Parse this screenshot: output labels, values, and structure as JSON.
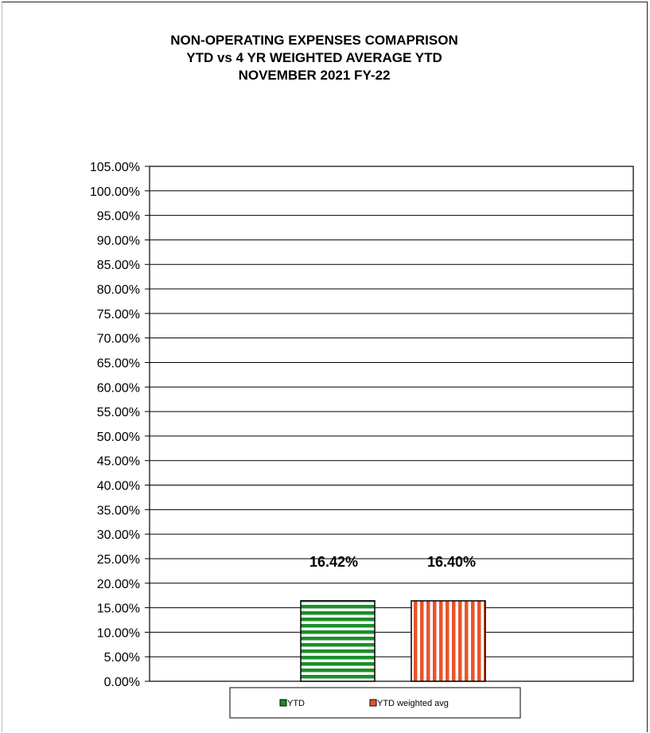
{
  "chart_data": {
    "type": "bar",
    "title": [
      "NON-OPERATING EXPENSES COMAPRISON",
      "YTD vs 4 YR WEIGHTED AVERAGE YTD",
      "NOVEMBER 2021  FY-22"
    ],
    "xlabel": "",
    "ylabel": "",
    "ylim": [
      0,
      105
    ],
    "ytick_step": 5,
    "y_tick_format": "percent_2dp",
    "grid": true,
    "legend_position": "bottom",
    "series": [
      {
        "name": "YTD",
        "values": [
          16.42
        ],
        "data_label": "16.42%",
        "color": "#1a8f2a",
        "pattern": "horizontal-stripes"
      },
      {
        "name": "YTD weighted avg",
        "values": [
          16.4
        ],
        "data_label": "16.40%",
        "color": "#e8542b",
        "pattern": "vertical-stripes"
      }
    ]
  },
  "colors": {
    "grid": "#000000",
    "background": "#ffffff"
  }
}
